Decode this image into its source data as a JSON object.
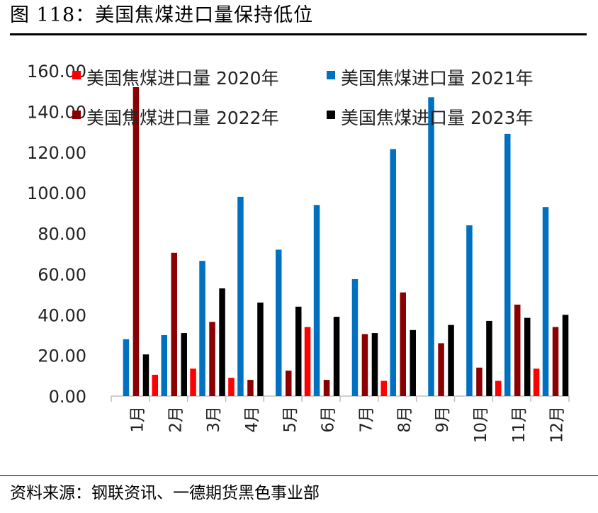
{
  "figure": {
    "title": "图 118：美国焦煤进口量保持低位",
    "source": "资料来源：钢联资讯、一德期货黑色事业部"
  },
  "chart_data": {
    "type": "bar",
    "title": "",
    "xlabel": "",
    "ylabel": "",
    "categories": [
      "1月",
      "2月",
      "3月",
      "4月",
      "5月",
      "6月",
      "7月",
      "8月",
      "9月",
      "10月",
      "11月",
      "12月"
    ],
    "ylim": [
      0,
      160
    ],
    "yticks": [
      "0.00",
      "20.00",
      "40.00",
      "60.00",
      "80.00",
      "100.00",
      "120.00",
      "140.00",
      "160.00"
    ],
    "grid": false,
    "legend_position": "top",
    "series": [
      {
        "name": "美国焦煤进口量 2020年",
        "color": "#ff0000",
        "values": [
          null,
          10.5,
          13.5,
          9,
          null,
          34,
          null,
          7.5,
          null,
          null,
          7.5,
          13.5
        ]
      },
      {
        "name": "美国焦煤进口量 2021年",
        "color": "#0070c0",
        "values": [
          28,
          30,
          66.5,
          98,
          72,
          94,
          57.5,
          121.5,
          147,
          84,
          129,
          93
        ]
      },
      {
        "name": "美国焦煤进口量 2022年",
        "color": "#8b0000",
        "values": [
          152,
          70.5,
          36.5,
          8,
          12.5,
          8,
          30.5,
          51,
          26,
          14,
          45,
          34
        ]
      },
      {
        "name": "美国焦煤进口量 2023年",
        "color": "#000000",
        "values": [
          20.5,
          31,
          53,
          46,
          44,
          39,
          31,
          32.5,
          35,
          37,
          38.5,
          40
        ]
      }
    ]
  }
}
